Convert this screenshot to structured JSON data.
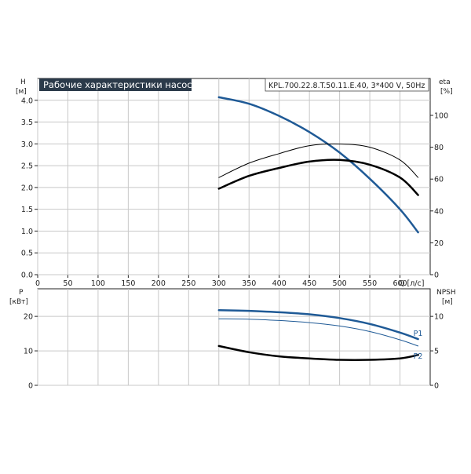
{
  "chart_data": [
    {
      "type": "line",
      "title": "Рабочие характеристики насоса",
      "model": "KPL.700.22.8.T.50.11.E.40, 3*400 V, 50Hz",
      "xlabel": "Q [л/с]",
      "ylabel": [
        "H",
        "[м]"
      ],
      "y2label": [
        "eta",
        "[%]"
      ],
      "xlim": [
        0,
        650
      ],
      "ylim": [
        0,
        4.5
      ],
      "y2lim": [
        0,
        100
      ],
      "x_ticks": [
        0,
        50,
        100,
        150,
        200,
        250,
        300,
        350,
        400,
        450,
        500,
        550,
        600
      ],
      "y_ticks": [
        0,
        0.5,
        1.0,
        1.5,
        2.0,
        2.5,
        3.0,
        3.5,
        4.0
      ],
      "y_tick_labels": [
        "0.0",
        "0.5",
        "1.0",
        "1.5",
        "2.0",
        "2.5",
        "3.0",
        "3.5",
        "4.0"
      ],
      "y2_ticks": [
        0,
        20,
        40,
        60,
        80,
        100
      ],
      "grid": true,
      "series": [
        {
          "color": "#1f5a96",
          "axis": "y",
          "x": [
            300,
            350,
            400,
            450,
            500,
            550,
            600,
            630
          ],
          "y": [
            4.07,
            3.92,
            3.64,
            3.27,
            2.8,
            2.2,
            1.5,
            0.97
          ]
        },
        {
          "color": "#000000",
          "axis": "y2",
          "width": 1,
          "x": [
            300,
            350,
            400,
            450,
            500,
            550,
            600,
            630
          ],
          "y": [
            61,
            70,
            76,
            81,
            82,
            80,
            72,
            61
          ]
        },
        {
          "color": "#000000",
          "axis": "y2",
          "width": 2.5,
          "x": [
            300,
            350,
            400,
            450,
            500,
            550,
            600,
            630
          ],
          "y": [
            54,
            62,
            67,
            71,
            72,
            69,
            61,
            50
          ]
        }
      ]
    },
    {
      "type": "line",
      "xlim": [
        0,
        650
      ],
      "ylim": [
        0,
        28
      ],
      "y2lim": [
        0,
        14
      ],
      "ylabel": [
        "P",
        "[кВт]"
      ],
      "y2label": [
        "NPSH",
        "[м]"
      ],
      "y_ticks": [
        0,
        10,
        20
      ],
      "y2_ticks": [
        0,
        5,
        10
      ],
      "grid": true,
      "series": [
        {
          "name": "P1",
          "color": "#1f5a96",
          "axis": "y",
          "width": 2.5,
          "x": [
            300,
            350,
            400,
            450,
            500,
            550,
            600,
            630
          ],
          "y": [
            21.8,
            21.6,
            21.2,
            20.6,
            19.5,
            17.8,
            15.3,
            13.4
          ]
        },
        {
          "name": "P2",
          "color": "#1f5a96",
          "axis": "y",
          "width": 1,
          "x": [
            300,
            350,
            400,
            450,
            500,
            550,
            600,
            630
          ],
          "y": [
            19.3,
            19.2,
            18.8,
            18.2,
            17.2,
            15.6,
            13.2,
            11.4
          ]
        },
        {
          "color": "#000000",
          "axis": "y2",
          "width": 2.5,
          "x": [
            300,
            350,
            400,
            450,
            500,
            550,
            600,
            630
          ],
          "y": [
            5.7,
            4.8,
            4.2,
            3.9,
            3.7,
            3.7,
            3.9,
            4.4
          ]
        }
      ]
    }
  ]
}
